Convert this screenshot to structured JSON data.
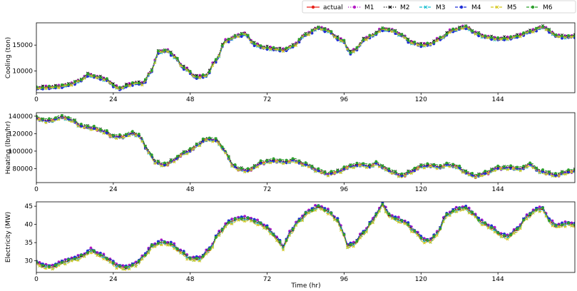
{
  "chart_data": {
    "type": "line",
    "xlabel": "Time (hr)",
    "xlim": [
      0,
      168
    ],
    "x_ticks": [
      0,
      24,
      48,
      72,
      96,
      120,
      144
    ],
    "x_step": 1,
    "legend": {
      "position": "top-right",
      "entries": [
        {
          "name": "actual",
          "color": "#e8231b",
          "dash": "solid",
          "marker": "circle"
        },
        {
          "name": "M1",
          "color": "#b419c4",
          "dash": "dot",
          "marker": "circle"
        },
        {
          "name": "M2",
          "color": "#000000",
          "dash": "dot",
          "marker": "x"
        },
        {
          "name": "M3",
          "color": "#17becf",
          "dash": "dash",
          "marker": "x"
        },
        {
          "name": "M4",
          "color": "#1f2fd6",
          "dash": "dash",
          "marker": "circle"
        },
        {
          "name": "M5",
          "color": "#d5c618",
          "dash": "dash",
          "marker": "x"
        },
        {
          "name": "M6",
          "color": "#2ca02c",
          "dash": "dash",
          "marker": "circle"
        }
      ]
    },
    "panels": [
      {
        "ylabel": "Cooling (ton)",
        "ylim": [
          5800,
          19300
        ],
        "y_ticks": [
          10000,
          15000
        ],
        "anchors": [
          [
            0,
            6700
          ],
          [
            6,
            6900
          ],
          [
            10,
            7300
          ],
          [
            14,
            8200
          ],
          [
            16,
            9300
          ],
          [
            19,
            8800
          ],
          [
            22,
            8300
          ],
          [
            24,
            7200
          ],
          [
            26,
            6600
          ],
          [
            29,
            7300
          ],
          [
            31,
            7700
          ],
          [
            33,
            7500
          ],
          [
            36,
            10000
          ],
          [
            38,
            13700
          ],
          [
            41,
            13900
          ],
          [
            43,
            12800
          ],
          [
            46,
            10600
          ],
          [
            50,
            8800
          ],
          [
            53,
            9100
          ],
          [
            56,
            12000
          ],
          [
            59,
            15800
          ],
          [
            63,
            16800
          ],
          [
            65,
            17200
          ],
          [
            68,
            15200
          ],
          [
            71,
            14500
          ],
          [
            74,
            14300
          ],
          [
            77,
            14000
          ],
          [
            80,
            14800
          ],
          [
            84,
            17000
          ],
          [
            88,
            18300
          ],
          [
            91,
            17800
          ],
          [
            94,
            16300
          ],
          [
            96,
            15700
          ],
          [
            97,
            14300
          ],
          [
            98,
            13500
          ],
          [
            100,
            14300
          ],
          [
            102,
            16000
          ],
          [
            105,
            16900
          ],
          [
            108,
            18100
          ],
          [
            111,
            17800
          ],
          [
            114,
            16900
          ],
          [
            117,
            15500
          ],
          [
            120,
            15000
          ],
          [
            123,
            15200
          ],
          [
            126,
            16300
          ],
          [
            130,
            17900
          ],
          [
            134,
            18500
          ],
          [
            137,
            17300
          ],
          [
            140,
            16600
          ],
          [
            144,
            16200
          ],
          [
            147,
            16300
          ],
          [
            150,
            16700
          ],
          [
            154,
            17600
          ],
          [
            158,
            18500
          ],
          [
            160,
            17800
          ],
          [
            162,
            16800
          ],
          [
            165,
            16600
          ],
          [
            168,
            16700
          ]
        ],
        "offsets": [
          0,
          200,
          250,
          -180,
          -250,
          -120,
          140
        ]
      },
      {
        "ylabel": "Heating (lbm/hr)",
        "ylim": [
          64000,
          144000
        ],
        "y_ticks": [
          80000,
          100000,
          120000,
          140000
        ],
        "anchors": [
          [
            0,
            138000
          ],
          [
            3,
            135000
          ],
          [
            5,
            136000
          ],
          [
            8,
            139500
          ],
          [
            11,
            136000
          ],
          [
            14,
            129000
          ],
          [
            18,
            126500
          ],
          [
            21,
            123000
          ],
          [
            24,
            117000
          ],
          [
            27,
            117000
          ],
          [
            30,
            121000
          ],
          [
            32,
            118000
          ],
          [
            35,
            100000
          ],
          [
            37,
            88000
          ],
          [
            40,
            84500
          ],
          [
            43,
            90000
          ],
          [
            46,
            98000
          ],
          [
            48,
            101000
          ],
          [
            50,
            107000
          ],
          [
            53,
            114000
          ],
          [
            56,
            113000
          ],
          [
            59,
            100000
          ],
          [
            61,
            85000
          ],
          [
            63,
            80000
          ],
          [
            66,
            78000
          ],
          [
            68,
            82000
          ],
          [
            70,
            87000
          ],
          [
            74,
            89500
          ],
          [
            78,
            88000
          ],
          [
            80,
            90000
          ],
          [
            84,
            85000
          ],
          [
            88,
            78000
          ],
          [
            91,
            74000
          ],
          [
            94,
            77000
          ],
          [
            98,
            83000
          ],
          [
            101,
            85000
          ],
          [
            104,
            83000
          ],
          [
            106,
            86500
          ],
          [
            108,
            82000
          ],
          [
            111,
            76500
          ],
          [
            114,
            72000
          ],
          [
            117,
            77000
          ],
          [
            120,
            83000
          ],
          [
            123,
            84000
          ],
          [
            126,
            82000
          ],
          [
            128,
            85000
          ],
          [
            131,
            83000
          ],
          [
            134,
            76000
          ],
          [
            137,
            71500
          ],
          [
            140,
            75000
          ],
          [
            144,
            81000
          ],
          [
            148,
            81500
          ],
          [
            151,
            80000
          ],
          [
            154,
            85000
          ],
          [
            157,
            77500
          ],
          [
            160,
            75000
          ],
          [
            162,
            72500
          ],
          [
            165,
            76000
          ],
          [
            168,
            78000
          ]
        ],
        "offsets": [
          0,
          -1500,
          1000,
          -1800,
          -800,
          -2000,
          1500
        ]
      },
      {
        "ylabel": "Electricity (MW)",
        "ylim": [
          26.8,
          46.2
        ],
        "y_ticks": [
          30,
          35,
          40,
          45
        ],
        "anchors": [
          [
            0,
            29.5
          ],
          [
            2,
            28.5
          ],
          [
            5,
            28.2
          ],
          [
            8,
            29.5
          ],
          [
            12,
            30.5
          ],
          [
            15,
            31.5
          ],
          [
            17,
            32.8
          ],
          [
            20,
            31.5
          ],
          [
            23,
            30.0
          ],
          [
            25,
            28.5
          ],
          [
            28,
            28.0
          ],
          [
            31,
            29.0
          ],
          [
            34,
            31.5
          ],
          [
            36,
            34.0
          ],
          [
            39,
            35.0
          ],
          [
            42,
            34.5
          ],
          [
            45,
            32.5
          ],
          [
            48,
            30.5
          ],
          [
            51,
            30.5
          ],
          [
            54,
            33.0
          ],
          [
            57,
            37.5
          ],
          [
            60,
            40.5
          ],
          [
            63,
            41.5
          ],
          [
            66,
            41.5
          ],
          [
            69,
            40.5
          ],
          [
            72,
            39.0
          ],
          [
            74,
            37.0
          ],
          [
            76,
            35.0
          ],
          [
            77,
            33.5
          ],
          [
            79,
            37.5
          ],
          [
            82,
            41.0
          ],
          [
            85,
            43.5
          ],
          [
            88,
            44.8
          ],
          [
            91,
            43.5
          ],
          [
            94,
            41.0
          ],
          [
            96,
            37.0
          ],
          [
            97,
            34.0
          ],
          [
            99,
            34.5
          ],
          [
            102,
            37.5
          ],
          [
            105,
            41.0
          ],
          [
            107,
            44.0
          ],
          [
            108,
            45.5
          ],
          [
            110,
            42.5
          ],
          [
            112,
            41.5
          ],
          [
            115,
            40.5
          ],
          [
            118,
            38.0
          ],
          [
            121,
            35.5
          ],
          [
            123,
            35.5
          ],
          [
            125,
            37.5
          ],
          [
            128,
            42.5
          ],
          [
            131,
            44.0
          ],
          [
            134,
            44.5
          ],
          [
            136,
            43.0
          ],
          [
            139,
            40.5
          ],
          [
            142,
            39.0
          ],
          [
            145,
            37.0
          ],
          [
            147,
            36.5
          ],
          [
            150,
            38.5
          ],
          [
            153,
            42.0
          ],
          [
            156,
            44.0
          ],
          [
            158,
            44.2
          ],
          [
            160,
            41.0
          ],
          [
            162,
            39.5
          ],
          [
            164,
            39.8
          ],
          [
            166,
            40.2
          ],
          [
            168,
            39.7
          ]
        ],
        "offsets": [
          0,
          0.6,
          0.3,
          -0.3,
          0.5,
          -0.5,
          0.2
        ]
      }
    ]
  }
}
